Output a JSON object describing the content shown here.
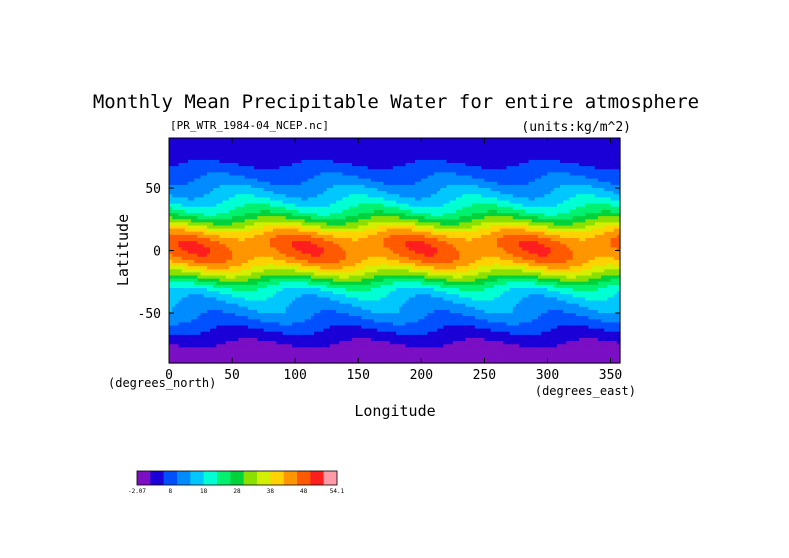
{
  "chart_data": {
    "type": "heatmap",
    "title": "Monthly Mean Precipitable Water for entire atmosphere",
    "subtitle_left": "[PR_WTR_1984-04_NCEP.nc]",
    "subtitle_right": "(units:kg/m^2)",
    "xlabel": "Longitude",
    "ylabel": "Latitude",
    "x_units": "(degrees_east)",
    "y_units": "(degrees_north)",
    "xlim": [
      0,
      357.5
    ],
    "ylim": [
      -90,
      90
    ],
    "x_ticks": [
      0,
      50,
      100,
      150,
      200,
      250,
      300,
      350
    ],
    "y_ticks": [
      -50,
      0,
      50
    ],
    "colorbar": {
      "tick_labels": [
        "-2.07",
        "8",
        "18",
        "28",
        "38",
        "48",
        "54.1"
      ],
      "min": -2.07,
      "max": 54.1,
      "colors": [
        "#7a0fc4",
        "#1a00d6",
        "#0050ff",
        "#008cff",
        "#00c8ff",
        "#00ffd2",
        "#00f070",
        "#00d23c",
        "#8ce000",
        "#d2f000",
        "#ffd200",
        "#ff9600",
        "#ff5a00",
        "#ff1e1e",
        "#ff9aa6"
      ]
    },
    "zonal_profile_lat": [
      90,
      80,
      70,
      65,
      60,
      55,
      50,
      45,
      40,
      35,
      30,
      25,
      20,
      15,
      10,
      5,
      0,
      -5,
      -10,
      -15,
      -20,
      -25,
      -30,
      -35,
      -40,
      -45,
      -50,
      -55,
      -60,
      -65,
      -70,
      -75,
      -80,
      -90
    ],
    "zonal_profile_value": [
      2,
      3,
      5,
      7,
      8,
      10,
      12,
      14,
      16,
      19,
      22,
      27,
      32,
      38,
      42,
      44,
      44,
      43,
      40,
      35,
      30,
      24,
      19,
      16,
      14,
      12,
      11,
      9,
      7,
      5,
      3,
      1.5,
      0.5,
      0
    ]
  }
}
